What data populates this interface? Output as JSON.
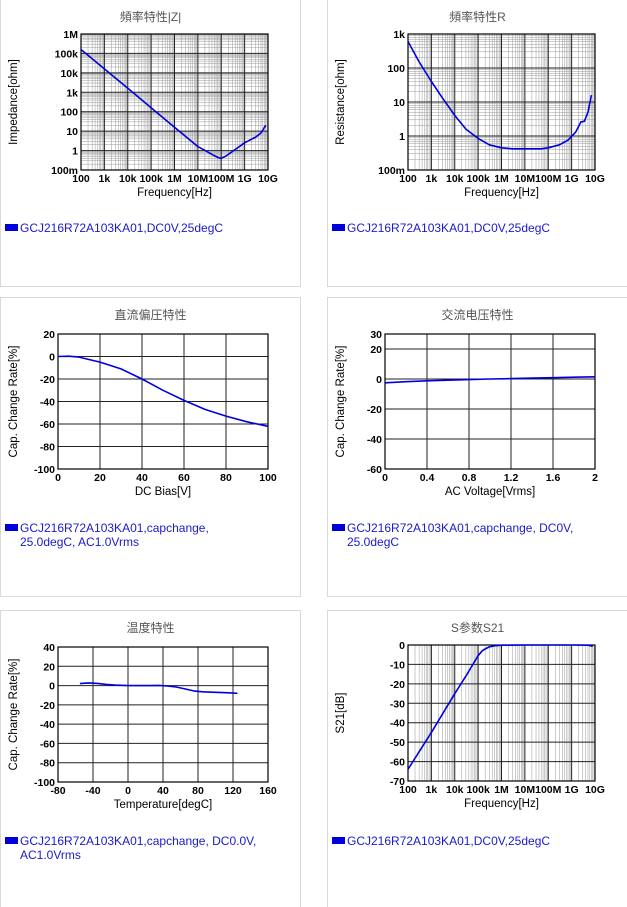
{
  "charts": [
    {
      "id": "impedance",
      "title": "頻率特性|Z|",
      "legend": "GCJ216R72A103KA01,DC0V,25degC",
      "chart_data": {
        "type": "line",
        "title": "頻率特性|Z|",
        "xlabel": "Frequency[Hz]",
        "ylabel": "Impedance[ohm]",
        "xscale": "log",
        "yscale": "log",
        "xlim": [
          100,
          10000000000
        ],
        "ylim": [
          0.1,
          1000000
        ],
        "xticks": [
          "100",
          "1k",
          "10k",
          "100k",
          "1M",
          "10M",
          "100M",
          "1G",
          "10G"
        ],
        "yticks": [
          "100m",
          "1",
          "10",
          "100",
          "1k",
          "10k",
          "100k",
          "1M"
        ],
        "grid": true,
        "series": [
          {
            "name": "GCJ216R72A103KA01,DC0V,25degC",
            "color": "#0000dd",
            "x": [
              100,
              1000,
              10000,
              100000,
              1000000,
              10000000,
              50000000,
              80000000,
              100000000,
              150000000,
              300000000,
              1000000000,
              3000000000,
              5000000000,
              8000000000
            ],
            "y": [
              160000,
              16000,
              1600,
              160,
              16,
              1.6,
              0.55,
              0.42,
              0.4,
              0.5,
              0.9,
              2.5,
              5,
              8,
              20
            ]
          }
        ]
      }
    },
    {
      "id": "resistance",
      "title": "頻率特性R",
      "legend": "GCJ216R72A103KA01,DC0V,25degC",
      "chart_data": {
        "type": "line",
        "title": "頻率特性R",
        "xlabel": "Frequency[Hz]",
        "ylabel": "Resistance[ohm]",
        "xscale": "log",
        "yscale": "log",
        "xlim": [
          100,
          10000000000
        ],
        "ylim": [
          0.1,
          1000
        ],
        "xticks": [
          "100",
          "1k",
          "10k",
          "100k",
          "1M",
          "10M",
          "100M",
          "1G",
          "10G"
        ],
        "yticks": [
          "100m",
          "1",
          "10",
          "100",
          "1k"
        ],
        "grid": true,
        "series": [
          {
            "name": "GCJ216R72A103KA01,DC0V,25degC",
            "color": "#0000dd",
            "x": [
              100,
              300,
              1000,
              3000,
              10000,
              30000,
              100000,
              300000,
              1000000,
              3000000,
              10000000,
              50000000,
              100000000,
              300000000,
              700000000,
              1500000000,
              2500000000,
              3500000000,
              5000000000,
              7000000000
            ],
            "y": [
              600,
              150,
              40,
              13,
              4,
              1.6,
              0.85,
              0.55,
              0.45,
              0.42,
              0.42,
              0.42,
              0.45,
              0.55,
              0.75,
              1.3,
              2.6,
              2.7,
              5,
              16
            ]
          }
        ]
      }
    },
    {
      "id": "dcbias",
      "title": "直流偏圧特性",
      "legend": "GCJ216R72A103KA01,capchange,\n25.0degC, AC1.0Vrms",
      "chart_data": {
        "type": "line",
        "title": "直流偏圧特性",
        "xlabel": "DC Bias[V]",
        "ylabel": "Cap. Change Rate[%]",
        "xlim": [
          0,
          100
        ],
        "ylim": [
          -100,
          20
        ],
        "xticks": [
          "0",
          "20",
          "40",
          "60",
          "80",
          "100"
        ],
        "yticks": [
          "20",
          "0",
          "-20",
          "-40",
          "-60",
          "-80",
          "-100"
        ],
        "grid": true,
        "series": [
          {
            "name": "GCJ216R72A103KA01,capchange,25.0degC, AC1.0Vrms",
            "color": "#0000dd",
            "x": [
              0,
              5,
              10,
              20,
              30,
              40,
              50,
              60,
              70,
              80,
              90,
              100
            ],
            "y": [
              0,
              0.3,
              -0.5,
              -5,
              -11,
              -20,
              -30,
              -39,
              -47,
              -53,
              -58,
              -62
            ]
          }
        ]
      }
    },
    {
      "id": "acvoltage",
      "title": "交流电压特性",
      "legend": "GCJ216R72A103KA01,capchange, DC0V,\n25.0degC",
      "chart_data": {
        "type": "line",
        "title": "交流电压特性",
        "xlabel": "AC Voltage[Vrms]",
        "ylabel": "Cap. Change Rate[%]",
        "xlim": [
          0,
          2
        ],
        "ylim": [
          -60,
          30
        ],
        "xticks": [
          "0",
          "0.4",
          "0.8",
          "1.2",
          "1.6",
          "2"
        ],
        "yticks": [
          "30",
          "20",
          "0",
          "-20",
          "-40",
          "-60"
        ],
        "grid": true,
        "series": [
          {
            "name": "GCJ216R72A103KA01,capchange, DC0V,25.0degC",
            "color": "#0000dd",
            "x": [
              0,
              0.2,
              0.4,
              0.6,
              0.8,
              1.0,
              1.2,
              1.4,
              1.6,
              1.8,
              2.0
            ],
            "y": [
              -2.5,
              -1.8,
              -1.2,
              -0.8,
              -0.4,
              0,
              0.3,
              0.6,
              0.9,
              1.2,
              1.5
            ]
          }
        ]
      }
    },
    {
      "id": "temperature",
      "title": "温度特性",
      "legend": "GCJ216R72A103KA01,capchange, DC0.0V,\nAC1.0Vrms",
      "chart_data": {
        "type": "line",
        "title": "温度特性",
        "xlabel": "Temperature[degC]",
        "ylabel": "Cap. Change Rate[%]",
        "xlim": [
          -80,
          160
        ],
        "ylim": [
          -100,
          40
        ],
        "xticks": [
          "-80",
          "-40",
          "0",
          "40",
          "80",
          "120",
          "160"
        ],
        "yticks": [
          "40",
          "20",
          "0",
          "-20",
          "-40",
          "-60",
          "-80",
          "-100"
        ],
        "grid": true,
        "series": [
          {
            "name": "GCJ216R72A103KA01,capchange, DC0.0V,AC1.0Vrms",
            "color": "#0000dd",
            "x": [
              -55,
              -45,
              -35,
              -25,
              -15,
              0,
              15,
              25,
              35,
              45,
              55,
              65,
              75,
              85,
              100,
              115,
              125
            ],
            "y": [
              2,
              2.8,
              2.3,
              1.2,
              0.5,
              0,
              0,
              0,
              0.2,
              -0.3,
              -1.5,
              -3.5,
              -5.5,
              -6.5,
              -7,
              -7.5,
              -8
            ]
          }
        ]
      }
    },
    {
      "id": "s21",
      "title": "S参数S21",
      "legend": "GCJ216R72A103KA01,DC0V,25degC",
      "chart_data": {
        "type": "line",
        "title": "S参数S21",
        "xlabel": "Frequency[Hz]",
        "ylabel": "S21[dB]",
        "xscale": "log",
        "xlim": [
          100,
          10000000000
        ],
        "ylim": [
          -70,
          0
        ],
        "xticks": [
          "100",
          "1k",
          "10k",
          "100k",
          "1M",
          "10M",
          "100M",
          "1G",
          "10G"
        ],
        "yticks": [
          "0",
          "-10",
          "-20",
          "-30",
          "-40",
          "-50",
          "-60",
          "-70"
        ],
        "grid": true,
        "series": [
          {
            "name": "GCJ216R72A103KA01,DC0V,25degC",
            "color": "#0000dd",
            "x": [
              100,
              1000,
              10000,
              30000,
              60000,
              100000,
              150000,
              200000,
              300000,
              500000,
              1000000,
              10000000,
              100000000,
              1000000000,
              5000000000,
              8000000000
            ],
            "y": [
              -64,
              -45,
              -25,
              -16,
              -10,
              -5.5,
              -3,
              -2,
              -1,
              -0.4,
              -0.1,
              0,
              0,
              0,
              -0.1,
              -0.6
            ]
          }
        ]
      }
    }
  ]
}
